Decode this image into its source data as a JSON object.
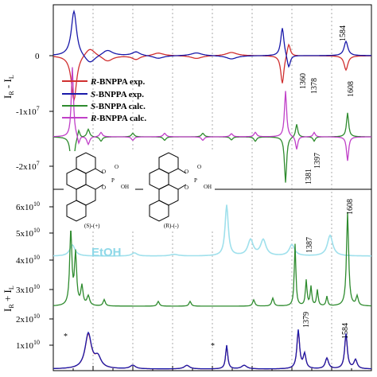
{
  "chart_data": [
    {
      "type": "line",
      "panel": "top",
      "ylabel": "I_R - I_L",
      "yticks": [
        "0",
        "-1x10^7",
        "-2x10^7"
      ],
      "legend": [
        {
          "label_prefix": "R",
          "label_rest": "-BNPPA exp.",
          "color": "#d03030"
        },
        {
          "label_prefix": "S",
          "label_rest": "-BNPPA exp.",
          "color": "#1a1aaa"
        },
        {
          "label_prefix": "S",
          "label_rest": "-BNPPA calc.",
          "color": "#2e8b2e"
        },
        {
          "label_prefix": "R",
          "label_rest": "-BNPPA calc.",
          "color": "#c040c8"
        }
      ],
      "annotations": [
        "1360",
        "1378",
        "1584",
        "1397",
        "1381",
        "1608"
      ],
      "series": [
        {
          "key": "r_exp",
          "color": "#d03030",
          "peaks": [
            [
              0.065,
              -0.95,
              0.01
            ],
            [
              0.115,
              0.18,
              0.02
            ],
            [
              0.17,
              -0.12,
              0.02
            ],
            [
              0.26,
              -0.08,
              0.015
            ],
            [
              0.33,
              0.06,
              0.02
            ],
            [
              0.45,
              -0.06,
              0.02
            ],
            [
              0.56,
              0.07,
              0.02
            ],
            [
              0.72,
              -0.6,
              0.006
            ],
            [
              0.74,
              0.28,
              0.006
            ],
            [
              0.92,
              -0.3,
              0.007
            ]
          ]
        },
        {
          "key": "s_exp",
          "color": "#1a1aaa",
          "peaks": [
            [
              0.065,
              0.95,
              0.01
            ],
            [
              0.115,
              -0.18,
              0.02
            ],
            [
              0.17,
              0.12,
              0.02
            ],
            [
              0.26,
              0.08,
              0.015
            ],
            [
              0.33,
              -0.06,
              0.02
            ],
            [
              0.45,
              0.06,
              0.02
            ],
            [
              0.56,
              -0.07,
              0.02
            ],
            [
              0.72,
              0.6,
              0.006
            ],
            [
              0.74,
              -0.28,
              0.006
            ],
            [
              0.92,
              0.3,
              0.007
            ]
          ]
        },
        {
          "key": "s_calc",
          "color": "#2e8b2e",
          "peaks": [
            [
              0.06,
              -1.6,
              0.004
            ],
            [
              0.08,
              0.2,
              0.004
            ],
            [
              0.11,
              0.18,
              0.005
            ],
            [
              0.15,
              -0.1,
              0.005
            ],
            [
              0.25,
              0.08,
              0.005
            ],
            [
              0.35,
              -0.08,
              0.005
            ],
            [
              0.47,
              0.08,
              0.005
            ],
            [
              0.56,
              -0.07,
              0.005
            ],
            [
              0.635,
              -0.1,
              0.005
            ],
            [
              0.73,
              -1.05,
              0.004
            ],
            [
              0.765,
              0.3,
              0.004
            ],
            [
              0.82,
              -0.1,
              0.004
            ],
            [
              0.925,
              0.55,
              0.004
            ]
          ]
        },
        {
          "key": "r_calc",
          "color": "#c040c8",
          "peaks": [
            [
              0.06,
              1.6,
              0.004
            ],
            [
              0.08,
              -0.2,
              0.004
            ],
            [
              0.11,
              -0.18,
              0.005
            ],
            [
              0.15,
              0.1,
              0.005
            ],
            [
              0.25,
              -0.08,
              0.005
            ],
            [
              0.35,
              0.08,
              0.005
            ],
            [
              0.47,
              -0.08,
              0.005
            ],
            [
              0.56,
              0.07,
              0.005
            ],
            [
              0.635,
              0.1,
              0.005
            ],
            [
              0.73,
              1.05,
              0.004
            ],
            [
              0.765,
              -0.3,
              0.004
            ],
            [
              0.82,
              0.1,
              0.004
            ],
            [
              0.925,
              -0.55,
              0.004
            ]
          ]
        }
      ]
    },
    {
      "type": "line",
      "panel": "bottom",
      "ylabel": "I_R + I_L",
      "yticks": [
        "6x10^10",
        "5x10^10",
        "4x10^10",
        "3x10^10",
        "2x10^10",
        "1x10^10"
      ],
      "annotations": [
        "1387",
        "1608",
        "1379",
        "1584",
        "*",
        "*"
      ],
      "solvent_label": "EtOH",
      "series": [
        {
          "key": "etoh",
          "color": "#9fe0ec",
          "peaks": [
            [
              0.06,
              0.35,
              0.01
            ],
            [
              0.255,
              0.1,
              0.01
            ],
            [
              0.38,
              0.05,
              0.015
            ],
            [
              0.545,
              1.6,
              0.006
            ],
            [
              0.62,
              0.5,
              0.01
            ],
            [
              0.66,
              0.5,
              0.01
            ],
            [
              0.75,
              0.35,
              0.01
            ],
            [
              0.87,
              0.65,
              0.01
            ]
          ]
        },
        {
          "key": "calc_raman",
          "color": "#2e8b2e",
          "peaks": [
            [
              0.055,
              2.4,
              0.004
            ],
            [
              0.07,
              1.6,
              0.004
            ],
            [
              0.09,
              0.6,
              0.004
            ],
            [
              0.11,
              0.3,
              0.005
            ],
            [
              0.16,
              0.2,
              0.004
            ],
            [
              0.33,
              0.15,
              0.004
            ],
            [
              0.43,
              0.15,
              0.004
            ],
            [
              0.63,
              0.2,
              0.004
            ],
            [
              0.69,
              0.25,
              0.004
            ],
            [
              0.76,
              1.95,
              0.003
            ],
            [
              0.795,
              0.8,
              0.003
            ],
            [
              0.81,
              0.6,
              0.003
            ],
            [
              0.83,
              0.5,
              0.003
            ],
            [
              0.86,
              0.3,
              0.003
            ],
            [
              0.925,
              2.95,
              0.004
            ],
            [
              0.955,
              0.3,
              0.004
            ]
          ]
        },
        {
          "key": "r_raman",
          "color": "#d03030",
          "peaks": [
            [
              0.11,
              0.95,
              0.012
            ],
            [
              0.14,
              0.3,
              0.012
            ],
            [
              0.25,
              0.1,
              0.01
            ],
            [
              0.42,
              0.1,
              0.01
            ],
            [
              0.545,
              0.65,
              0.004
            ],
            [
              0.6,
              0.1,
              0.01
            ],
            [
              0.77,
              1.05,
              0.005
            ],
            [
              0.79,
              0.4,
              0.005
            ],
            [
              0.86,
              0.3,
              0.006
            ],
            [
              0.92,
              0.95,
              0.005
            ],
            [
              0.95,
              0.25,
              0.006
            ]
          ]
        },
        {
          "key": "s_raman",
          "color": "#1a1aaa",
          "peaks": [
            [
              0.11,
              0.98,
              0.012
            ],
            [
              0.14,
              0.3,
              0.012
            ],
            [
              0.25,
              0.1,
              0.01
            ],
            [
              0.42,
              0.1,
              0.01
            ],
            [
              0.545,
              0.66,
              0.004
            ],
            [
              0.6,
              0.1,
              0.01
            ],
            [
              0.77,
              1.08,
              0.005
            ],
            [
              0.79,
              0.4,
              0.005
            ],
            [
              0.86,
              0.3,
              0.006
            ],
            [
              0.92,
              0.98,
              0.005
            ],
            [
              0.95,
              0.25,
              0.006
            ]
          ]
        }
      ]
    }
  ],
  "molecules": [
    {
      "label": "(S)-(+)",
      "oh": "OH",
      "o": "O",
      "p": "P"
    },
    {
      "label": "(R)-(-)",
      "oh": "OH",
      "o": "O",
      "p": "P"
    }
  ]
}
